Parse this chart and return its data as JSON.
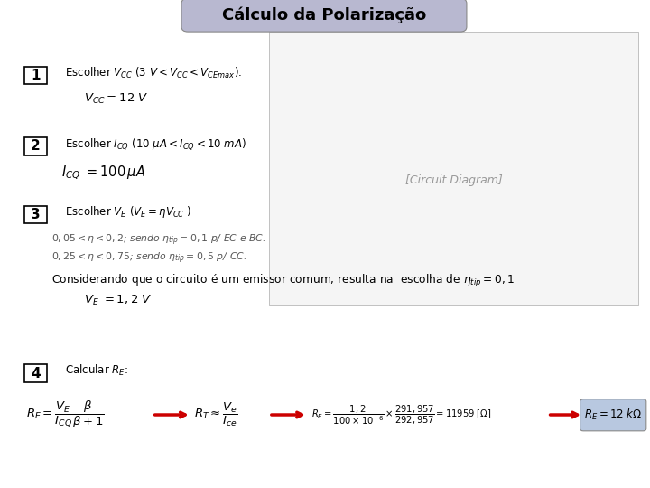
{
  "title": "Cálculo da Polarização",
  "title_bg": "#b8b8d0",
  "title_fontsize": 13,
  "background_color": "#ffffff",
  "step1_box_text": "1",
  "step1_line1": "Escolher $V_{CC}$ $(3\\ V < V_{CC} < V_{CEmax})$.",
  "step1_line2": "$V_{CC} = 12\\ V$",
  "step2_box_text": "2",
  "step2_line1": "Escolher $I_{CQ}$ $(10\\ \\mu A < I_{CQ} < 10\\ mA)$",
  "step2_line2": "$I_{CQ}\\ = 100\\,\\mu A$",
  "step3_box_text": "3",
  "step3_line1": "Escolher $V_E$ $(V_E = \\eta V_{CC}$ $)$",
  "step3_line2": "$0,05 < \\eta < 0,2$; sendo $\\eta_{tip}=0,1$ p/ EC e BC.",
  "step3_line3": "$0,25 < \\eta < 0,75$; sendo $\\eta_{tip}=0,5$ p/ CC.",
  "step3_note": "Considerando que o circuito é um emissor comum, resulta na  escolha de $\\eta_{tip} = 0,1$",
  "step3_ve": "$V_E\\ = 1,2\\ V$",
  "step4_box_text": "4",
  "step4_line1": "Calcular $R_E$:",
  "step4_formula_left": "$R_E = \\dfrac{V_E}{I_{CQ}}\\dfrac{\\beta}{\\beta+1}$",
  "step4_formula_mid1": "$R_T \\approx \\dfrac{V_e}{I_{ce}}$",
  "step4_formula_mid2": "$R_E = \\dfrac{1,2}{100\\times10^{-6}}\\times\\dfrac{291,957}{292,957} = 11959\\ [\\Omega]$",
  "step4_result": "$R_E = 12\\ k\\Omega$",
  "step4_result_bg": "#b8c8e0",
  "arrow_color": "#cc0000",
  "box_color": "#000000",
  "box_fill": "#ffffff",
  "text_color": "#000000",
  "italic_color": "#555555"
}
